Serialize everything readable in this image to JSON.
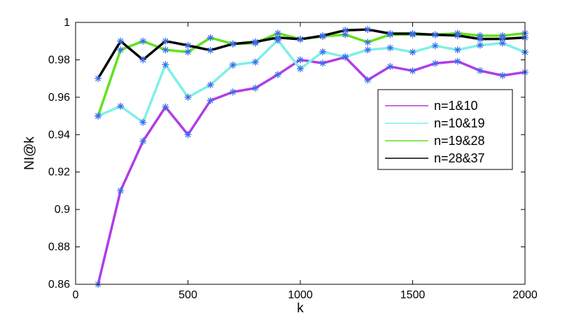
{
  "chart_data": {
    "type": "line",
    "xlabel": "k",
    "ylabel": "NI@k",
    "xlim": [
      0,
      2000
    ],
    "ylim": [
      0.86,
      1.0
    ],
    "xticks": [
      0,
      500,
      1000,
      1500,
      2000
    ],
    "xtick_labels": [
      "0",
      "500",
      "1000",
      "1500",
      "2000"
    ],
    "yticks": [
      0.86,
      0.88,
      0.9,
      0.92,
      0.94,
      0.96,
      0.98,
      1.0
    ],
    "ytick_labels": [
      "0.86",
      "0.88",
      "0.9",
      "0.92",
      "0.94",
      "0.96",
      "0.98",
      "1"
    ],
    "grid": false,
    "legend_position": "right",
    "marker": "asterisk",
    "marker_color": "#3a6ee8",
    "x": [
      100,
      200,
      300,
      400,
      500,
      600,
      700,
      800,
      900,
      1000,
      1100,
      1200,
      1300,
      1400,
      1500,
      1600,
      1700,
      1800,
      1900,
      2000
    ],
    "series": [
      {
        "name": "n=1&10",
        "color": "#b03ce6",
        "values": [
          0.86,
          0.91,
          0.9365,
          0.9548,
          0.94,
          0.9582,
          0.9628,
          0.9649,
          0.9721,
          0.98,
          0.9782,
          0.9814,
          0.9692,
          0.9764,
          0.9741,
          0.9781,
          0.9792,
          0.9742,
          0.9716,
          0.9734
        ]
      },
      {
        "name": "n=10&19",
        "color": "#7ef0e8",
        "values": [
          0.95,
          0.9552,
          0.9466,
          0.9774,
          0.96,
          0.9666,
          0.9772,
          0.9788,
          0.9905,
          0.9752,
          0.9843,
          0.9816,
          0.9853,
          0.9864,
          0.9841,
          0.9875,
          0.9853,
          0.9878,
          0.9889,
          0.9841
        ]
      },
      {
        "name": "n=19&28",
        "color": "#5fe21c",
        "values": [
          0.95,
          0.9853,
          0.99,
          0.9853,
          0.9842,
          0.9918,
          0.9885,
          0.9889,
          0.9942,
          0.991,
          0.9925,
          0.9935,
          0.9894,
          0.9935,
          0.9935,
          0.9934,
          0.9942,
          0.9929,
          0.9929,
          0.9942
        ]
      },
      {
        "name": "n=28&37",
        "color": "#000000",
        "values": [
          0.97,
          0.99,
          0.98,
          0.99,
          0.9877,
          0.9851,
          0.9885,
          0.9896,
          0.9919,
          0.991,
          0.9929,
          0.9958,
          0.9962,
          0.994,
          0.994,
          0.9934,
          0.993,
          0.9911,
          0.9912,
          0.9919
        ]
      }
    ]
  }
}
